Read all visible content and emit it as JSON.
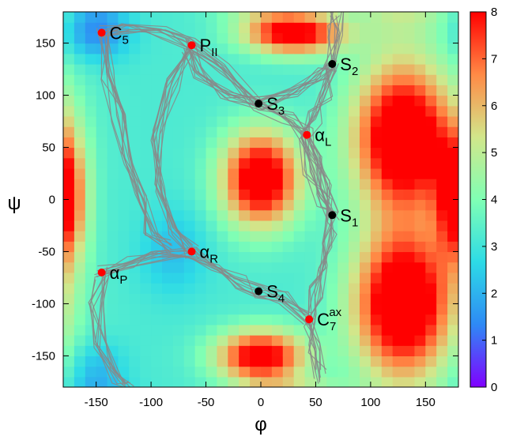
{
  "chart_data": {
    "type": "heatmap",
    "title": "",
    "xlabel": "φ",
    "ylabel": "ψ",
    "xlim": [
      -180,
      180
    ],
    "ylim": [
      -180,
      180
    ],
    "x_ticks": [
      -150,
      -100,
      -50,
      0,
      50,
      100,
      150
    ],
    "y_ticks": [
      -150,
      -100,
      -50,
      0,
      50,
      100,
      150
    ],
    "x_tick_labels": [
      "-150",
      "-100",
      "-50",
      "0",
      "50",
      "100",
      "150"
    ],
    "y_tick_labels": [
      "-150",
      "-100",
      "-50",
      "0",
      "50",
      "100",
      "150"
    ],
    "colorbar": {
      "range": [
        0,
        8
      ],
      "ticks": [
        0,
        1,
        2,
        3,
        4,
        5,
        6,
        7,
        8
      ],
      "tick_labels": [
        "0",
        "1",
        "2",
        "3",
        "4",
        "5",
        "6",
        "7",
        "8"
      ],
      "colormap": [
        "#8000ff",
        "#2e8af5",
        "#2ddbe6",
        "#80ffb4",
        "#d2e68a",
        "#ff8a46",
        "#ff0000"
      ]
    },
    "grid_spacing": 10,
    "surface_notes": "free-energy surface over (phi, psi), red = high (8), violet = low (0); values are a smooth approximation of the depicted map",
    "basins": [
      {
        "phi": 30,
        "psi": 160,
        "height": 5.5,
        "sx": 45,
        "sy": 20
      },
      {
        "phi": 0,
        "psi": 20,
        "height": 6,
        "sx": 35,
        "sy": 45
      },
      {
        "phi": 0,
        "psi": -150,
        "height": 5.5,
        "sx": 40,
        "sy": 25
      },
      {
        "phi": 130,
        "psi": 60,
        "height": 6.5,
        "sx": 45,
        "sy": 70
      },
      {
        "phi": 130,
        "psi": -100,
        "height": 6.5,
        "sx": 45,
        "sy": 70
      },
      {
        "phi": 180,
        "psi": 0,
        "height": 2.5,
        "sx": 20,
        "sy": 60
      },
      {
        "phi": -180,
        "psi": 0,
        "height": 2.5,
        "sx": 20,
        "sy": 60
      }
    ],
    "wells": [
      {
        "phi": -150,
        "psi": 160,
        "depth": 1.8,
        "sx": 30,
        "sy": 25
      },
      {
        "phi": -80,
        "psi": -50,
        "depth": 1.0,
        "sx": 30,
        "sy": 40
      },
      {
        "phi": -150,
        "psi": -160,
        "depth": 1.0,
        "sx": 25,
        "sy": 25
      }
    ],
    "trajectory_color": "#888888",
    "trajectory_paths": [
      [
        [
          -145,
          160
        ],
        [
          -120,
          165
        ],
        [
          -90,
          160
        ],
        [
          -65,
          148
        ],
        [
          -35,
          125
        ],
        [
          -2,
          92
        ],
        [
          25,
          80
        ],
        [
          42,
          62
        ],
        [
          50,
          40
        ],
        [
          60,
          15
        ],
        [
          65,
          -15
        ],
        [
          63,
          -40
        ],
        [
          58,
          -65
        ],
        [
          50,
          -90
        ],
        [
          44,
          -115
        ],
        [
          48,
          -140
        ],
        [
          55,
          -170
        ]
      ],
      [
        [
          -65,
          148
        ],
        [
          -55,
          120
        ],
        [
          -30,
          100
        ],
        [
          -2,
          92
        ],
        [
          30,
          105
        ],
        [
          55,
          120
        ],
        [
          65,
          130
        ],
        [
          68,
          160
        ],
        [
          70,
          180
        ]
      ],
      [
        [
          -145,
          -70
        ],
        [
          -120,
          -60
        ],
        [
          -95,
          -55
        ],
        [
          -63,
          -50
        ],
        [
          -40,
          -65
        ],
        [
          -20,
          -80
        ],
        [
          -2,
          -88
        ],
        [
          20,
          -95
        ],
        [
          44,
          -115
        ]
      ],
      [
        [
          -65,
          148
        ],
        [
          -80,
          110
        ],
        [
          -95,
          60
        ],
        [
          -90,
          10
        ],
        [
          -80,
          -30
        ],
        [
          -63,
          -50
        ]
      ],
      [
        [
          -145,
          -70
        ],
        [
          -150,
          -100
        ],
        [
          -145,
          -140
        ],
        [
          -130,
          -170
        ],
        [
          -120,
          -180
        ]
      ],
      [
        [
          -145,
          160
        ],
        [
          -140,
          120
        ],
        [
          -130,
          80
        ],
        [
          -120,
          40
        ],
        [
          -110,
          0
        ],
        [
          -100,
          -30
        ],
        [
          -85,
          -45
        ]
      ],
      [
        [
          65,
          130
        ],
        [
          60,
          100
        ],
        [
          50,
          80
        ],
        [
          42,
          62
        ],
        [
          45,
          30
        ],
        [
          58,
          0
        ],
        [
          65,
          -15
        ]
      ]
    ],
    "states": [
      {
        "name": "C5",
        "label_main": "C",
        "label_sub": "5",
        "label_sup": "",
        "phi": -145,
        "psi": 160,
        "color": "#ff0000"
      },
      {
        "name": "PII",
        "label_main": "P",
        "label_sub": "II",
        "label_sup": "",
        "phi": -63,
        "psi": 148,
        "color": "#ff0000"
      },
      {
        "name": "S2",
        "label_main": "S",
        "label_sub": "2",
        "label_sup": "",
        "phi": 65,
        "psi": 130,
        "color": "#000000"
      },
      {
        "name": "S3",
        "label_main": "S",
        "label_sub": "3",
        "label_sup": "",
        "phi": -2,
        "psi": 92,
        "color": "#000000"
      },
      {
        "name": "αL",
        "label_main": "α",
        "label_sub": "L",
        "label_sup": "",
        "phi": 42,
        "psi": 62,
        "color": "#ff0000"
      },
      {
        "name": "S1",
        "label_main": "S",
        "label_sub": "1",
        "label_sup": "",
        "phi": 65,
        "psi": -15,
        "color": "#000000"
      },
      {
        "name": "αR",
        "label_main": "α",
        "label_sub": "R",
        "label_sup": "",
        "phi": -63,
        "psi": -50,
        "color": "#ff0000"
      },
      {
        "name": "αP",
        "label_main": "α",
        "label_sub": "P",
        "label_sup": "",
        "phi": -145,
        "psi": -70,
        "color": "#ff0000"
      },
      {
        "name": "S4",
        "label_main": "S",
        "label_sub": "4",
        "label_sup": "",
        "phi": -2,
        "psi": -88,
        "color": "#000000"
      },
      {
        "name": "C7ax",
        "label_main": "C",
        "label_sub": "7",
        "label_sup": "ax",
        "phi": 44,
        "psi": -115,
        "color": "#ff0000"
      }
    ]
  }
}
